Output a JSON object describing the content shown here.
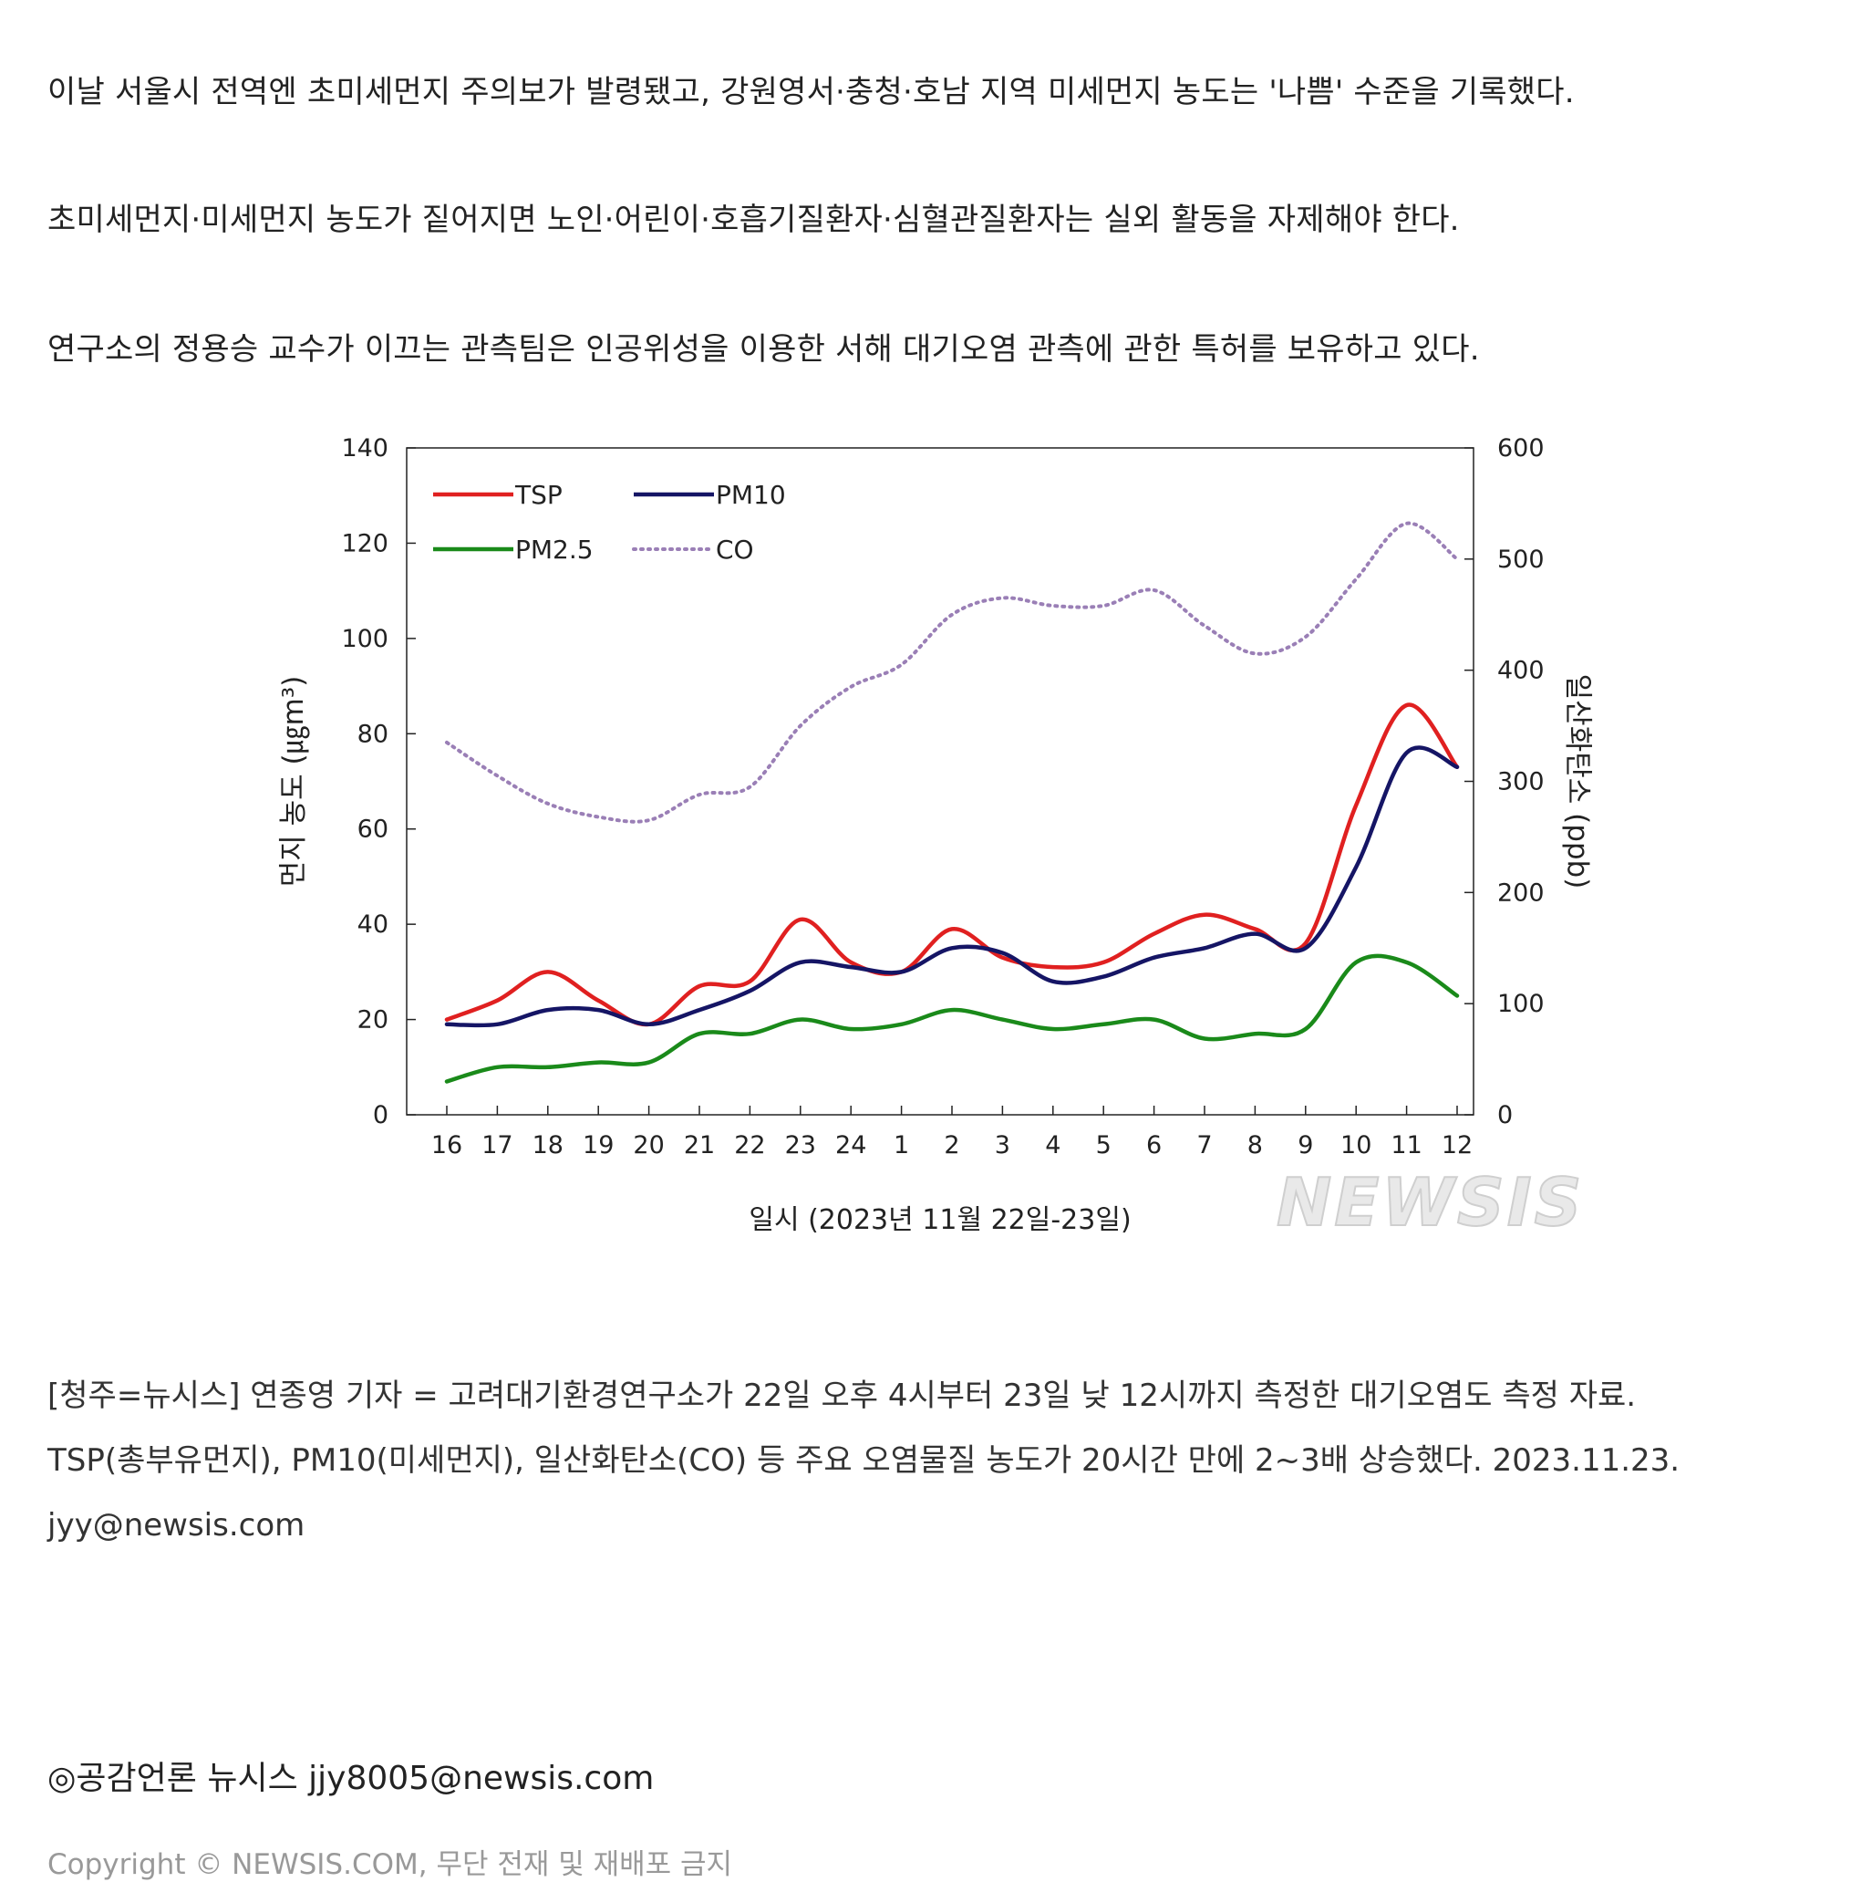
{
  "article": {
    "paragraphs": [
      "이날 서울시 전역엔 초미세먼지 주의보가 발령됐고, 강원영서·충청·호남 지역 미세먼지 농도는 '나쁨' 수준을 기록했다.",
      "초미세먼지·미세먼지 농도가 짙어지면 노인·어린이·호흡기질환자·심혈관질환자는 실외 활동을 자제해야 한다.",
      "연구소의 정용승 교수가 이끄는 관측팀은 인공위성을 이용한 서해 대기오염 관측에 관한 특허를 보유하고 있다."
    ],
    "caption_lines": [
      "[청주=뉴시스] 연종영 기자 = 고려대기환경연구소가 22일 오후 4시부터 23일 낮 12시까지 측정한 대기오염도 측정 자료.",
      "TSP(총부유먼지), PM10(미세먼지), 일산화탄소(CO) 등 주요 오염물질 농도가 20시간 만에 2~3배 상승했다. 2023.11.23.",
      "jyy@newsis.com"
    ],
    "byline": "◎공감언론 뉴시스 jjy8005@newsis.com",
    "copyright": "Copyright © NEWSIS.COM, 무단 전재 및 재배포 금지"
  },
  "watermark": "NEWSIS",
  "chart_data": {
    "type": "line",
    "xlabel": "일시 (2023년  11월  22일-23일)",
    "ylabel": "먼지 농도 (㎍m³)",
    "y2label": "일산화탄소 (ppb)",
    "categories": [
      "16",
      "17",
      "18",
      "19",
      "20",
      "21",
      "22",
      "23",
      "24",
      "1",
      "2",
      "3",
      "4",
      "5",
      "6",
      "7",
      "8",
      "9",
      "10",
      "11",
      "12"
    ],
    "ylim": [
      0,
      140
    ],
    "y2lim": [
      0,
      600
    ],
    "yticks": [
      "0",
      "20",
      "40",
      "60",
      "80",
      "100",
      "120",
      "140"
    ],
    "y2ticks": [
      "0",
      "100",
      "200",
      "300",
      "400",
      "500",
      "600"
    ],
    "legend_position": "top-left",
    "series": [
      {
        "name": "TSP",
        "axis": "left",
        "color": "#e02020",
        "style": "solid",
        "values": [
          20,
          24,
          30,
          24,
          19,
          27,
          28,
          41,
          32,
          30,
          39,
          33,
          31,
          32,
          38,
          42,
          39,
          36,
          65,
          86,
          73
        ]
      },
      {
        "name": "PM10",
        "axis": "left",
        "color": "#151565",
        "style": "solid",
        "values": [
          19,
          19,
          22,
          22,
          19,
          22,
          26,
          32,
          31,
          30,
          35,
          34,
          28,
          29,
          33,
          35,
          38,
          35,
          52,
          76,
          73
        ]
      },
      {
        "name": "PM2.5",
        "axis": "left",
        "color": "#1a8a1a",
        "style": "solid",
        "values": [
          7,
          10,
          10,
          11,
          11,
          17,
          17,
          20,
          18,
          19,
          22,
          20,
          18,
          19,
          20,
          16,
          17,
          18,
          32,
          32,
          25
        ]
      },
      {
        "name": "CO",
        "axis": "right",
        "color": "#9a7fb6",
        "style": "dotted",
        "values": [
          335,
          305,
          280,
          268,
          265,
          288,
          295,
          350,
          385,
          405,
          450,
          465,
          458,
          458,
          472,
          440,
          415,
          430,
          482,
          532,
          500
        ]
      }
    ]
  }
}
